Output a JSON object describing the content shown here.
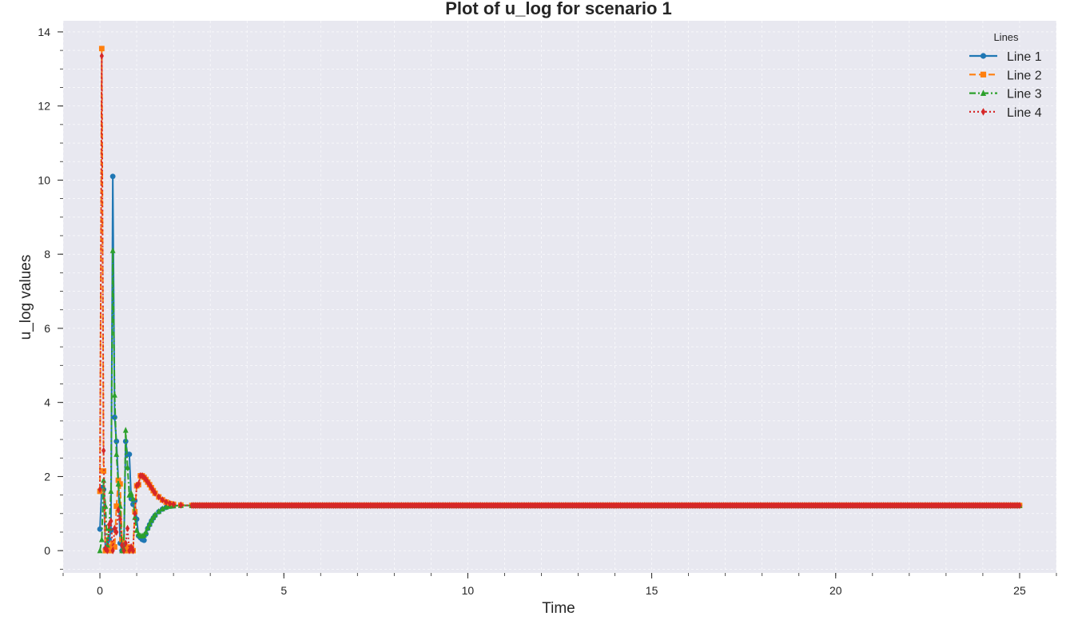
{
  "chart_data": {
    "type": "line",
    "title": "Plot of u_log for scenario 1",
    "xlabel": "Time",
    "ylabel": "u_log values",
    "xlim": [
      -1,
      26
    ],
    "ylim": [
      -0.6,
      14.3
    ],
    "x_ticks": [
      0,
      5,
      10,
      15,
      20,
      25
    ],
    "x_tick_labels": [
      "0",
      "5",
      "10",
      "15",
      "20",
      "25"
    ],
    "y_ticks": [
      0,
      2,
      4,
      6,
      8,
      10,
      12,
      14
    ],
    "y_tick_labels": [
      "0",
      "2",
      "4",
      "6",
      "8",
      "10",
      "12",
      "14"
    ],
    "grid": true,
    "legend_title": "Lines",
    "legend_position": "top-right",
    "steady_state": 1.22,
    "x_end": 25,
    "series": [
      {
        "name": "Line 1",
        "color": "#1f77b4",
        "linestyle": "solid",
        "marker": "circle",
        "points": [
          [
            0,
            0.58
          ],
          [
            0.05,
            1.7
          ],
          [
            0.1,
            1.65
          ],
          [
            0.15,
            0.05
          ],
          [
            0.2,
            0.0
          ],
          [
            0.25,
            0.3
          ],
          [
            0.3,
            0.55
          ],
          [
            0.35,
            10.1
          ],
          [
            0.4,
            3.6
          ],
          [
            0.45,
            2.95
          ],
          [
            0.5,
            1.9
          ],
          [
            0.55,
            0.2
          ],
          [
            0.6,
            0.0
          ],
          [
            0.65,
            0.05
          ],
          [
            0.7,
            2.95
          ],
          [
            0.75,
            2.6
          ],
          [
            0.8,
            2.6
          ],
          [
            0.85,
            1.4
          ],
          [
            0.9,
            1.25
          ],
          [
            0.95,
            1.35
          ],
          [
            1.0,
            0.85
          ],
          [
            1.05,
            0.4
          ],
          [
            1.1,
            0.35
          ],
          [
            1.15,
            0.3
          ],
          [
            1.2,
            0.28
          ],
          [
            1.25,
            0.45
          ],
          [
            1.3,
            0.6
          ],
          [
            1.35,
            0.7
          ],
          [
            1.4,
            0.8
          ],
          [
            1.45,
            0.88
          ],
          [
            1.5,
            0.95
          ],
          [
            1.6,
            1.05
          ],
          [
            1.7,
            1.12
          ],
          [
            1.8,
            1.17
          ],
          [
            1.9,
            1.2
          ],
          [
            2.0,
            1.21
          ],
          [
            2.2,
            1.22
          ],
          [
            2.5,
            1.22
          ]
        ]
      },
      {
        "name": "Line 2",
        "color": "#ff7f0e",
        "linestyle": "dashed",
        "marker": "square",
        "points": [
          [
            0,
            1.6
          ],
          [
            0.05,
            13.55
          ],
          [
            0.1,
            2.15
          ],
          [
            0.15,
            0.0
          ],
          [
            0.2,
            0.05
          ],
          [
            0.25,
            0.1
          ],
          [
            0.3,
            0.0
          ],
          [
            0.35,
            0.2
          ],
          [
            0.4,
            0.1
          ],
          [
            0.45,
            1.2
          ],
          [
            0.5,
            1.9
          ],
          [
            0.55,
            1.8
          ],
          [
            0.6,
            0.3
          ],
          [
            0.65,
            0.0
          ],
          [
            0.7,
            0.0
          ],
          [
            0.75,
            0.1
          ],
          [
            0.8,
            0.0
          ],
          [
            0.85,
            0.05
          ],
          [
            0.9,
            0.0
          ],
          [
            0.95,
            1.05
          ],
          [
            1.0,
            1.75
          ],
          [
            1.05,
            1.78
          ],
          [
            1.1,
            2.02
          ],
          [
            1.15,
            2.02
          ],
          [
            1.2,
            1.98
          ],
          [
            1.25,
            1.92
          ],
          [
            1.3,
            1.85
          ],
          [
            1.35,
            1.78
          ],
          [
            1.4,
            1.7
          ],
          [
            1.45,
            1.62
          ],
          [
            1.5,
            1.55
          ],
          [
            1.6,
            1.45
          ],
          [
            1.7,
            1.37
          ],
          [
            1.8,
            1.31
          ],
          [
            1.9,
            1.27
          ],
          [
            2.0,
            1.25
          ],
          [
            2.2,
            1.23
          ],
          [
            2.5,
            1.22
          ]
        ]
      },
      {
        "name": "Line 3",
        "color": "#2ca02c",
        "linestyle": "dashdot",
        "marker": "triangle",
        "points": [
          [
            0,
            0.0
          ],
          [
            0.05,
            0.3
          ],
          [
            0.1,
            1.9
          ],
          [
            0.15,
            1.2
          ],
          [
            0.2,
            0.15
          ],
          [
            0.25,
            0.6
          ],
          [
            0.3,
            1.6
          ],
          [
            0.35,
            8.1
          ],
          [
            0.4,
            4.2
          ],
          [
            0.45,
            2.6
          ],
          [
            0.5,
            1.8
          ],
          [
            0.55,
            1.2
          ],
          [
            0.6,
            0.0
          ],
          [
            0.65,
            0.05
          ],
          [
            0.7,
            3.25
          ],
          [
            0.75,
            2.25
          ],
          [
            0.8,
            1.5
          ],
          [
            0.85,
            1.55
          ],
          [
            0.9,
            1.4
          ],
          [
            0.95,
            0.9
          ],
          [
            1.0,
            0.55
          ],
          [
            1.05,
            0.45
          ],
          [
            1.1,
            0.4
          ],
          [
            1.15,
            0.4
          ],
          [
            1.2,
            0.42
          ],
          [
            1.25,
            0.5
          ],
          [
            1.3,
            0.62
          ],
          [
            1.35,
            0.72
          ],
          [
            1.4,
            0.82
          ],
          [
            1.45,
            0.9
          ],
          [
            1.5,
            0.97
          ],
          [
            1.6,
            1.06
          ],
          [
            1.7,
            1.13
          ],
          [
            1.8,
            1.18
          ],
          [
            1.9,
            1.2
          ],
          [
            2.0,
            1.21
          ],
          [
            2.2,
            1.22
          ],
          [
            2.5,
            1.22
          ]
        ]
      },
      {
        "name": "Line 4",
        "color": "#d62728",
        "linestyle": "dotted",
        "marker": "diamond",
        "points": [
          [
            0,
            1.65
          ],
          [
            0.05,
            13.35
          ],
          [
            0.1,
            2.7
          ],
          [
            0.15,
            0.05
          ],
          [
            0.2,
            0.0
          ],
          [
            0.25,
            0.7
          ],
          [
            0.3,
            0.8
          ],
          [
            0.35,
            0.0
          ],
          [
            0.4,
            0.6
          ],
          [
            0.45,
            0.5
          ],
          [
            0.5,
            1.1
          ],
          [
            0.55,
            0.85
          ],
          [
            0.6,
            0.15
          ],
          [
            0.65,
            0.0
          ],
          [
            0.7,
            0.2
          ],
          [
            0.75,
            0.6
          ],
          [
            0.8,
            0.0
          ],
          [
            0.85,
            0.1
          ],
          [
            0.9,
            0.0
          ],
          [
            0.95,
            1.0
          ],
          [
            1.0,
            1.75
          ],
          [
            1.05,
            1.8
          ],
          [
            1.1,
            2.02
          ],
          [
            1.15,
            2.02
          ],
          [
            1.2,
            1.98
          ],
          [
            1.25,
            1.92
          ],
          [
            1.3,
            1.85
          ],
          [
            1.35,
            1.78
          ],
          [
            1.4,
            1.7
          ],
          [
            1.45,
            1.62
          ],
          [
            1.5,
            1.55
          ],
          [
            1.6,
            1.45
          ],
          [
            1.7,
            1.37
          ],
          [
            1.8,
            1.31
          ],
          [
            1.9,
            1.27
          ],
          [
            2.0,
            1.25
          ],
          [
            2.2,
            1.23
          ],
          [
            2.5,
            1.22
          ]
        ]
      }
    ]
  }
}
